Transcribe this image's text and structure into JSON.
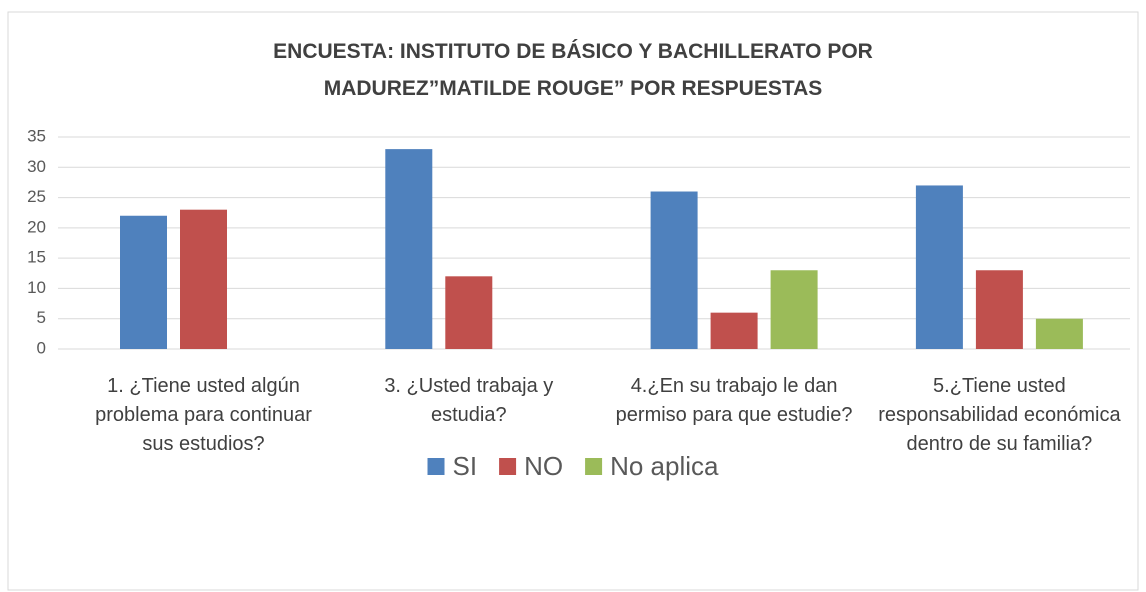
{
  "chart_data": {
    "type": "bar",
    "title": "ENCUESTA: INSTITUTO DE BÁSICO Y BACHILLERATO POR MADUREZ”MATILDE ROUGE”   POR RESPUESTAS",
    "categories": [
      "1. ¿Tiene usted algún problema para continuar sus estudios?",
      "3. ¿Usted trabaja y estudia?",
      "4.¿En su trabajo le dan permiso para que estudie?",
      "5.¿Tiene usted responsabilidad económica dentro de su familia?"
    ],
    "series": [
      {
        "name": "SI",
        "color": "#4f81bd",
        "values": [
          22,
          33,
          26,
          27
        ]
      },
      {
        "name": "NO",
        "color": "#c0504d",
        "values": [
          23,
          12,
          6,
          13
        ]
      },
      {
        "name": "No aplica",
        "color": "#9bbb59",
        "values": [
          null,
          null,
          13,
          5
        ]
      }
    ],
    "ylim": [
      0,
      35
    ],
    "yticks": [
      0,
      5,
      10,
      15,
      20,
      25,
      30,
      35
    ],
    "grid": true,
    "legend": "bottom"
  }
}
